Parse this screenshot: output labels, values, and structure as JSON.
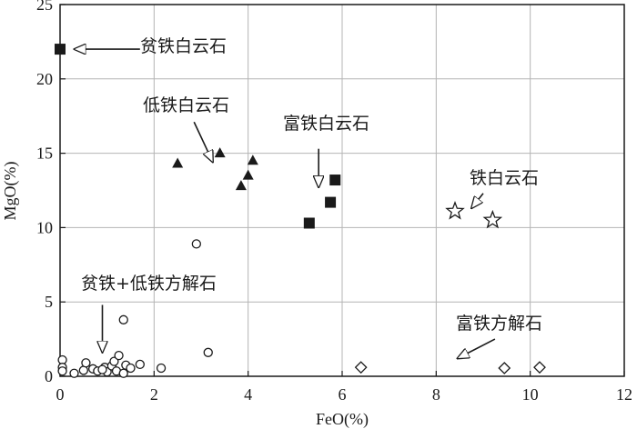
{
  "chart_data": {
    "type": "scatter",
    "title": "",
    "xlabel": "FeO(%)",
    "ylabel": "MgO(%)",
    "xlim": [
      0,
      12
    ],
    "ylim": [
      0,
      25
    ],
    "xticks": [
      "0",
      "2",
      "4",
      "6",
      "8",
      "10",
      "12"
    ],
    "yticks": [
      "0",
      "5",
      "10",
      "15",
      "20",
      "25"
    ],
    "grid": true,
    "series": [
      {
        "name": "贫铁白云石",
        "marker": "square",
        "color": "#1a1a1a",
        "points": [
          [
            0.0,
            22.0
          ]
        ]
      },
      {
        "name": "低铁白云石",
        "marker": "triangle",
        "color": "#1a1a1a",
        "points": [
          [
            2.5,
            14.3
          ],
          [
            3.4,
            15.0
          ],
          [
            3.85,
            12.8
          ],
          [
            4.0,
            13.5
          ],
          [
            4.1,
            14.5
          ]
        ]
      },
      {
        "name": "富铁白云石",
        "marker": "square",
        "color": "#1a1a1a",
        "points": [
          [
            5.3,
            10.3
          ],
          [
            5.75,
            11.7
          ],
          [
            5.85,
            13.2
          ]
        ]
      },
      {
        "name": "铁白云石",
        "marker": "star",
        "color": "#1a1a1a",
        "points": [
          [
            8.4,
            11.1
          ],
          [
            9.2,
            10.5
          ]
        ]
      },
      {
        "name": "贫铁+低铁方解石",
        "marker": "circle",
        "color": "#1a1a1a",
        "points": [
          [
            0.05,
            1.1
          ],
          [
            0.05,
            0.6
          ],
          [
            0.05,
            0.35
          ],
          [
            0.3,
            0.2
          ],
          [
            0.5,
            0.4
          ],
          [
            0.55,
            0.9
          ],
          [
            0.7,
            0.5
          ],
          [
            0.8,
            0.35
          ],
          [
            0.95,
            0.6
          ],
          [
            1.0,
            0.3
          ],
          [
            1.1,
            0.7
          ],
          [
            1.15,
            1.0
          ],
          [
            1.2,
            0.35
          ],
          [
            1.25,
            1.4
          ],
          [
            1.35,
            0.2
          ],
          [
            1.4,
            0.75
          ],
          [
            1.5,
            0.55
          ],
          [
            1.35,
            3.8
          ],
          [
            1.7,
            0.8
          ],
          [
            2.15,
            0.55
          ],
          [
            2.9,
            8.9
          ],
          [
            3.15,
            1.6
          ],
          [
            0.9,
            0.45
          ]
        ]
      },
      {
        "name": "富铁方解石",
        "marker": "diamond",
        "color": "#1a1a1a",
        "points": [
          [
            6.4,
            0.6
          ],
          [
            9.45,
            0.55
          ],
          [
            10.2,
            0.6
          ]
        ]
      }
    ],
    "annotations": [
      {
        "text": "贫铁白云石",
        "arrow_tail": [
          1.7,
          22.0
        ],
        "arrow_head": [
          0.3,
          22.0
        ]
      },
      {
        "text": "低铁白云石",
        "arrow_tail": [
          2.85,
          17.1
        ],
        "arrow_head": [
          3.25,
          14.4
        ]
      },
      {
        "text": "富铁白云石",
        "arrow_tail": [
          5.5,
          15.3
        ],
        "arrow_head": [
          5.5,
          12.7
        ]
      },
      {
        "text": "铁白云石",
        "arrow_tail": [
          9.0,
          12.3
        ],
        "arrow_head": [
          8.75,
          11.3
        ]
      },
      {
        "text": "贫铁+低铁方解石",
        "arrow_tail": [
          0.9,
          4.8
        ],
        "arrow_head": [
          0.9,
          1.6
        ]
      },
      {
        "text": "富铁方解石",
        "arrow_tail": [
          9.25,
          2.5
        ],
        "arrow_head": [
          8.45,
          1.2
        ]
      }
    ]
  }
}
